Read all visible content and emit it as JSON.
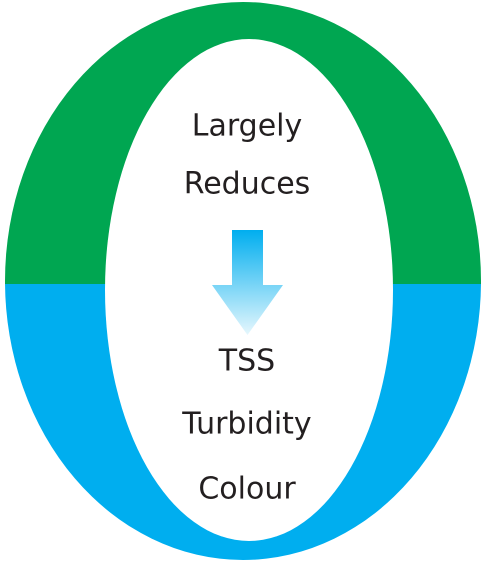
{
  "top_text": [
    "Largely",
    "Reduces"
  ],
  "bottom_text": [
    "TSS",
    "Turbidity",
    "Colour"
  ]
}
